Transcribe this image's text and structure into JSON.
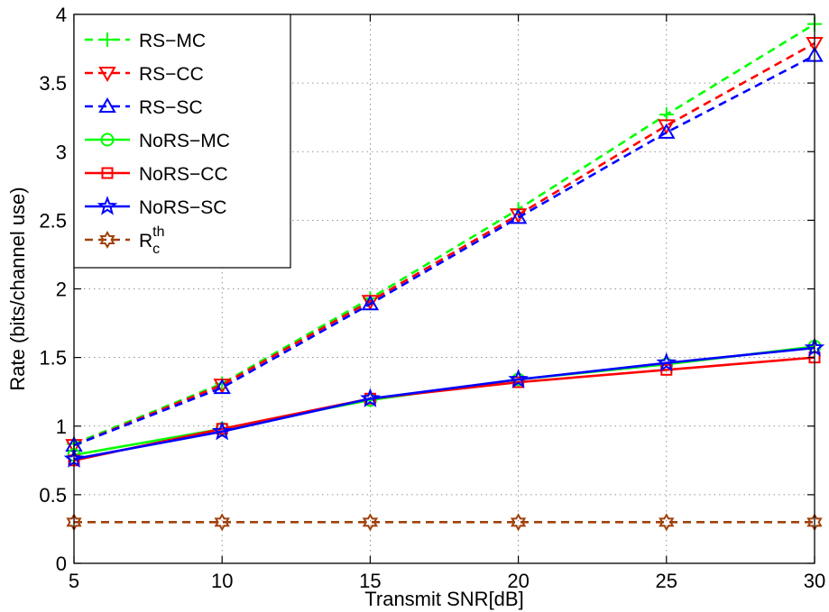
{
  "chart_data": {
    "type": "line",
    "xlabel": "Transmit SNR[dB]",
    "ylabel": "Rate (bits/channel use)",
    "xlim": [
      5,
      30
    ],
    "ylim": [
      0,
      4
    ],
    "grid": true,
    "legend_position": "top-left",
    "x": [
      5,
      10,
      15,
      20,
      25,
      30
    ],
    "x_ticks": [
      "5",
      "10",
      "15",
      "20",
      "25",
      "30"
    ],
    "y_ticks": [
      "0",
      "0.5",
      "1",
      "1.5",
      "2",
      "2.5",
      "3",
      "3.5",
      "4"
    ],
    "series": [
      {
        "name": "RS−MC",
        "values": [
          0.87,
          1.31,
          1.93,
          2.58,
          3.27,
          3.93
        ],
        "color": "#00ff00",
        "dash": "dashed",
        "marker": "plus"
      },
      {
        "name": "RS−CC",
        "values": [
          0.86,
          1.3,
          1.91,
          2.54,
          3.19,
          3.79
        ],
        "color": "#ff0000",
        "dash": "dashed",
        "marker": "triangle-down"
      },
      {
        "name": "RS−SC",
        "values": [
          0.86,
          1.28,
          1.89,
          2.52,
          3.14,
          3.7
        ],
        "color": "#0000ff",
        "dash": "dashed",
        "marker": "triangle-up"
      },
      {
        "name": "NoRS−MC",
        "values": [
          0.79,
          0.98,
          1.19,
          1.34,
          1.45,
          1.58
        ],
        "color": "#00ff00",
        "dash": "solid",
        "marker": "circle"
      },
      {
        "name": "NoRS−CC",
        "values": [
          0.75,
          0.98,
          1.2,
          1.32,
          1.41,
          1.5
        ],
        "color": "#ff0000",
        "dash": "solid",
        "marker": "square"
      },
      {
        "name": "NoRS−SC",
        "values": [
          0.76,
          0.96,
          1.2,
          1.34,
          1.46,
          1.57
        ],
        "color": "#0000ff",
        "dash": "solid",
        "marker": "star"
      },
      {
        "name": "R_c^th",
        "name_base": "R",
        "name_sub": "c",
        "name_sup": "th",
        "values": [
          0.3,
          0.3,
          0.3,
          0.3,
          0.3,
          0.3
        ],
        "color": "#a0410d",
        "dash": "dashed",
        "marker": "hexagram"
      }
    ]
  }
}
